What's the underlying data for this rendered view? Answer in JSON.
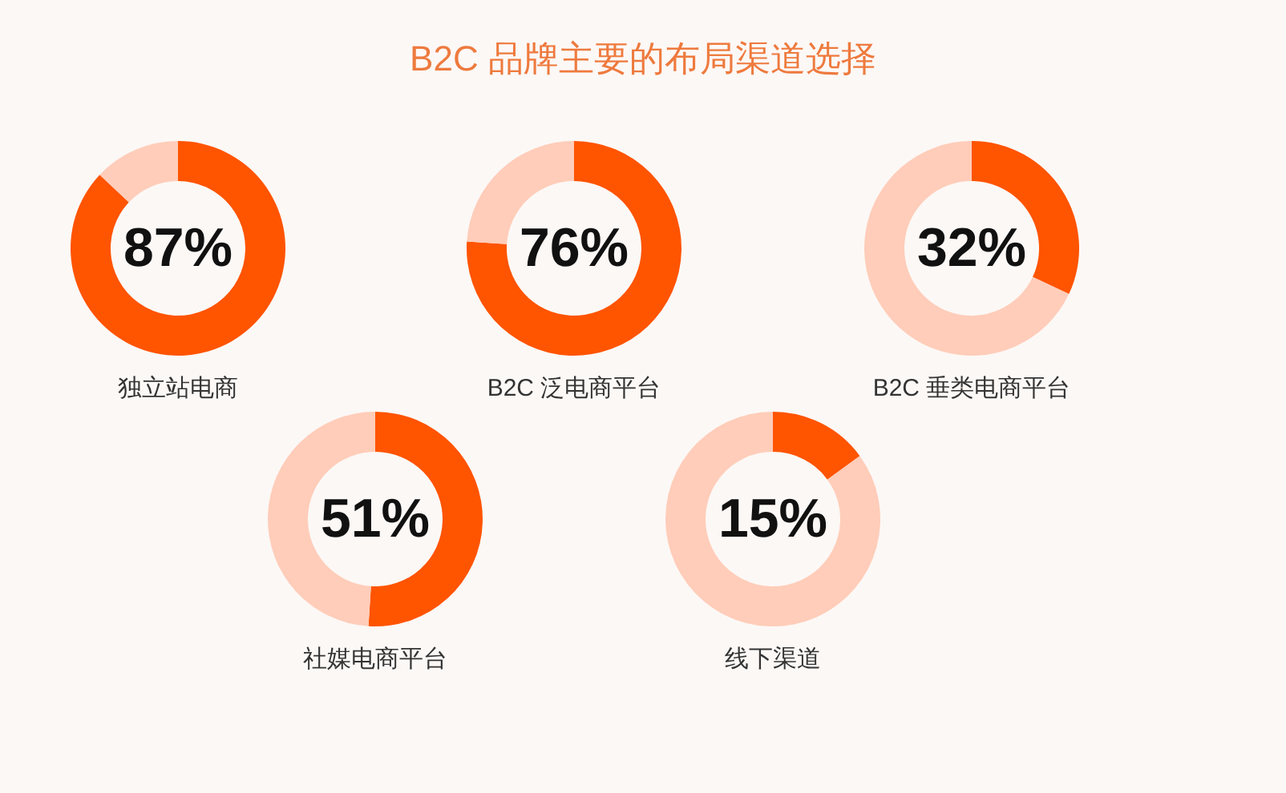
{
  "chart_data": [
    {
      "type": "other",
      "title": "B2C 品牌主要的布局渠道选择"
    },
    {
      "type": "donut",
      "categories": [
        null,
        null
      ],
      "values": [
        87,
        13
      ],
      "colors": [
        "#ff5400",
        "#ffcdb9"
      ],
      "annotations": [
        "87%"
      ],
      "xlabel": "独立站电商"
    },
    {
      "type": "donut",
      "categories": [
        null,
        null
      ],
      "values": [
        76,
        24
      ],
      "colors": [
        "#ff5400",
        "#ffcdb9"
      ],
      "annotations": [
        "76%"
      ],
      "xlabel": "B2C 泛电商平台"
    },
    {
      "type": "donut",
      "categories": [
        null,
        null
      ],
      "values": [
        32,
        68
      ],
      "colors": [
        "#ff5400",
        "#ffcdb9"
      ],
      "annotations": [
        "32%"
      ],
      "xlabel": "B2C 垂类电商平台"
    },
    {
      "type": "donut",
      "categories": [
        null,
        null
      ],
      "values": [
        51,
        49
      ],
      "colors": [
        "#ff5400",
        "#ffcdb9"
      ],
      "annotations": [
        "51%"
      ],
      "xlabel": "社媒电商平台"
    },
    {
      "type": "donut",
      "categories": [
        null,
        null
      ],
      "values": [
        15,
        85
      ],
      "colors": [
        "#ff5400",
        "#ffcdb9"
      ],
      "annotations": [
        "15%"
      ],
      "xlabel": "线下渠道"
    }
  ]
}
